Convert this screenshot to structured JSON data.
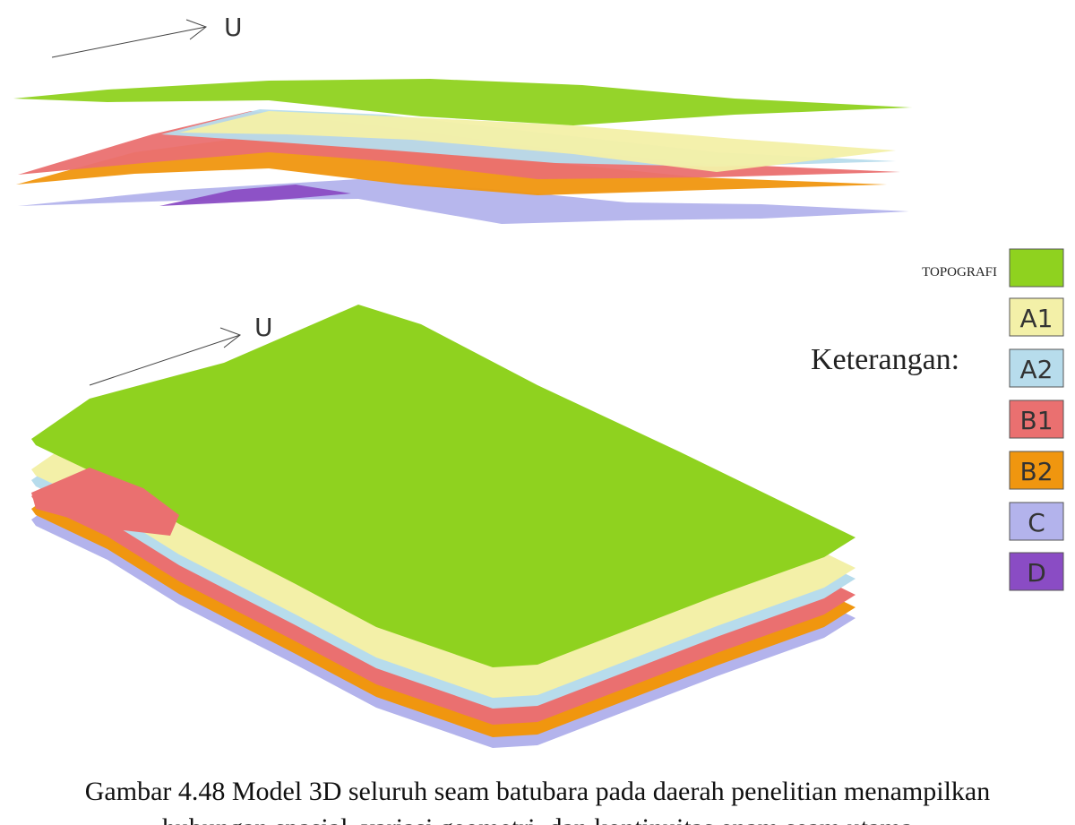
{
  "figure": {
    "north_labels": [
      "U",
      "U"
    ],
    "legend": {
      "title": "Keterangan:",
      "items": [
        {
          "label": "TOPOGRAFI",
          "color": "#8fd21f"
        },
        {
          "label": "A1",
          "color": "#f3f0a8"
        },
        {
          "label": "A2",
          "color": "#b7dcec"
        },
        {
          "label": "B1",
          "color": "#ea7070"
        },
        {
          "label": "B2",
          "color": "#f0960f"
        },
        {
          "label": "C",
          "color": "#b3b3ec"
        },
        {
          "label": "D",
          "color": "#8a4cc4"
        }
      ]
    },
    "caption": [
      "Gambar 4.48 Model 3D seluruh seam batubara pada daerah penelitian menampilkan",
      "hubungan spasial, variasi geometri, dan kontinuitas enam seam utama"
    ]
  }
}
